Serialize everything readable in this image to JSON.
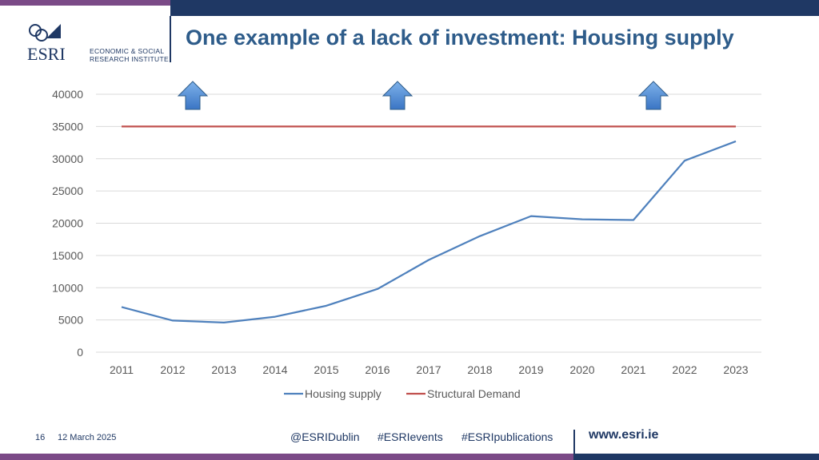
{
  "header": {
    "title": "One example of a lack of investment: Housing supply",
    "logo": {
      "wordmark": "ESRI",
      "line1": "ECONOMIC & SOCIAL",
      "line2": "RESEARCH INSTITUTE"
    }
  },
  "footer": {
    "page_number": "16",
    "date": "12 March 2025",
    "handle": "@ESRIDublin",
    "tag1": "#ESRIevents",
    "tag2": "#ESRIpublications",
    "website": "www.esri.ie"
  },
  "colors": {
    "title": "#2e5c8a",
    "navy": "#1f3864",
    "purple": "#7b4a87",
    "housing_supply": "#4f81bd",
    "structural_demand": "#c0504d",
    "arrow": "#4f81bd"
  },
  "chart_data": {
    "type": "line",
    "x": [
      "2011",
      "2012",
      "2013",
      "2014",
      "2015",
      "2016",
      "2017",
      "2018",
      "2019",
      "2020",
      "2021",
      "2022",
      "2023"
    ],
    "series": [
      {
        "name": "Housing supply",
        "values": [
          7000,
          4900,
          4600,
          5500,
          7200,
          9800,
          14300,
          18000,
          21100,
          20600,
          20500,
          29700,
          32700
        ]
      },
      {
        "name": "Structural Demand",
        "values": [
          35000,
          35000,
          35000,
          35000,
          35000,
          35000,
          35000,
          35000,
          35000,
          35000,
          35000,
          35000,
          35000
        ]
      }
    ],
    "yticks": [
      "0",
      "5000",
      "10000",
      "15000",
      "20000",
      "25000",
      "30000",
      "35000",
      "40000"
    ],
    "ylim": [
      0,
      40000
    ],
    "grid": true,
    "legend": "bottom",
    "annotations": [
      {
        "type": "up-arrow",
        "near_x": "2012"
      },
      {
        "type": "up-arrow",
        "near_x": "2016"
      },
      {
        "type": "up-arrow",
        "near_x": "2021"
      }
    ]
  }
}
